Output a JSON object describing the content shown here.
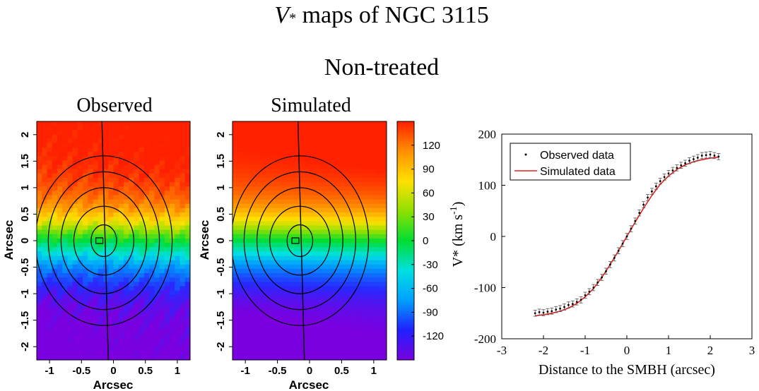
{
  "header": {
    "title_symbol": "V",
    "title_subscript": "*",
    "title_rest": " maps of NGC 3115",
    "subtitle": "Non-treated"
  },
  "chart_data": [
    {
      "type": "heatmap",
      "title": "Observed",
      "xlabel": "Arcsec",
      "ylabel": "Arcsec",
      "xlim": [
        -1.2,
        1.2
      ],
      "ylim": [
        -2.25,
        2.25
      ],
      "xticks": [
        -1,
        -0.5,
        0,
        0.5,
        1
      ],
      "xtick_labels": [
        "-1",
        "-0.5",
        "0",
        "0.5",
        "1"
      ],
      "yticks": [
        2,
        1.5,
        1,
        0.5,
        0,
        -0.5,
        -1,
        -1.5,
        -2
      ],
      "ytick_labels": [
        "2",
        "1.5",
        "1",
        "0.5",
        "0",
        "-0.5",
        "-1",
        "-1.5",
        "-2"
      ],
      "contours": [
        {
          "a": 0.2,
          "b": 0.3
        },
        {
          "a": 0.47,
          "b": 0.65
        },
        {
          "a": 0.67,
          "b": 1.0
        },
        {
          "a": 0.87,
          "b": 1.3
        },
        {
          "a": 1.07,
          "b": 1.6
        }
      ],
      "center": [
        -0.15,
        0
      ],
      "marker": [
        -0.22,
        0
      ]
    },
    {
      "type": "heatmap",
      "title": "Simulated",
      "xlabel": "Arcsec",
      "ylabel": "Arcsec",
      "xlim": [
        -1.2,
        1.2
      ],
      "ylim": [
        -2.25,
        2.25
      ],
      "xticks": [
        -1,
        -0.5,
        0,
        0.5,
        1
      ],
      "xtick_labels": [
        "-1",
        "-0.5",
        "0",
        "0.5",
        "1"
      ],
      "yticks": [
        2,
        1.5,
        1,
        0.5,
        0,
        -0.5,
        -1,
        -1.5,
        -2
      ],
      "ytick_labels": [
        "2",
        "1.5",
        "1",
        "0.5",
        "0",
        "-0.5",
        "-1",
        "-1.5",
        "-2"
      ],
      "contours": [
        {
          "a": 0.2,
          "b": 0.3
        },
        {
          "a": 0.47,
          "b": 0.65
        },
        {
          "a": 0.67,
          "b": 1.0
        },
        {
          "a": 0.87,
          "b": 1.3
        },
        {
          "a": 1.07,
          "b": 1.6
        }
      ],
      "center": [
        -0.15,
        0
      ],
      "marker": [
        -0.22,
        0
      ]
    },
    {
      "type": "colorbar",
      "ylim": [
        -150,
        150
      ],
      "ticks": [
        120,
        90,
        60,
        30,
        0,
        -30,
        -60,
        -90,
        -120
      ],
      "tick_labels": [
        "120",
        "90",
        "60",
        "30",
        "0",
        "-30",
        "-60",
        "-90",
        "-120"
      ],
      "colors": [
        "#7a00e0",
        "#2020ff",
        "#00a0ff",
        "#00e0e0",
        "#00dd33",
        "#90e000",
        "#ffe000",
        "#ff9000",
        "#ff2000"
      ]
    },
    {
      "type": "scatter",
      "xlabel": "Distance to the SMBH (arcsec)",
      "ylabel_main": "V* (km s",
      "ylabel_sup": "-1",
      "ylabel_close": ")",
      "xlim": [
        -3,
        3
      ],
      "ylim": [
        -200,
        200
      ],
      "xticks": [
        -3,
        -2,
        -1,
        0,
        1,
        2,
        3
      ],
      "xtick_labels": [
        "-3",
        "-2",
        "-1",
        "0",
        "1",
        "2",
        "3"
      ],
      "yticks": [
        200,
        100,
        0,
        -100,
        -200
      ],
      "ytick_labels": [
        "200",
        "100",
        "0",
        "-100",
        "-200"
      ],
      "legend": [
        "Observed data",
        "Simulated data"
      ],
      "legend_position": "top-left",
      "series": [
        {
          "name": "Observed data",
          "x": [
            -2.2,
            -2.1,
            -2.0,
            -1.9,
            -1.8,
            -1.7,
            -1.6,
            -1.5,
            -1.4,
            -1.3,
            -1.2,
            -1.1,
            -1.0,
            -0.9,
            -0.8,
            -0.7,
            -0.6,
            -0.5,
            -0.4,
            -0.3,
            -0.2,
            -0.1,
            0.0,
            0.1,
            0.2,
            0.3,
            0.4,
            0.5,
            0.6,
            0.7,
            0.8,
            0.9,
            1.0,
            1.1,
            1.2,
            1.3,
            1.4,
            1.5,
            1.6,
            1.7,
            1.8,
            1.9,
            2.0,
            2.1,
            2.2
          ],
          "y": [
            -150,
            -148,
            -149,
            -147,
            -146,
            -143,
            -141,
            -138,
            -134,
            -132,
            -128,
            -124,
            -115,
            -108,
            -100,
            -90,
            -80,
            -68,
            -55,
            -42,
            -28,
            -14,
            0,
            15,
            30,
            46,
            62,
            76,
            88,
            98,
            108,
            116,
            123,
            129,
            134,
            139,
            143,
            148,
            151,
            154,
            158,
            159,
            160,
            158,
            156
          ],
          "error": 6
        },
        {
          "name": "Simulated data",
          "x": [
            -2.2,
            -2.0,
            -1.8,
            -1.6,
            -1.4,
            -1.2,
            -1.0,
            -0.8,
            -0.6,
            -0.4,
            -0.2,
            0.0,
            0.2,
            0.4,
            0.6,
            0.8,
            1.0,
            1.2,
            1.4,
            1.6,
            1.8,
            2.0,
            2.2
          ],
          "y": [
            -155,
            -153,
            -150,
            -146,
            -140,
            -131,
            -118,
            -102,
            -80,
            -55,
            -28,
            0,
            28,
            55,
            80,
            102,
            118,
            131,
            140,
            146,
            150,
            153,
            155
          ],
          "color": "#e62020"
        }
      ]
    }
  ]
}
